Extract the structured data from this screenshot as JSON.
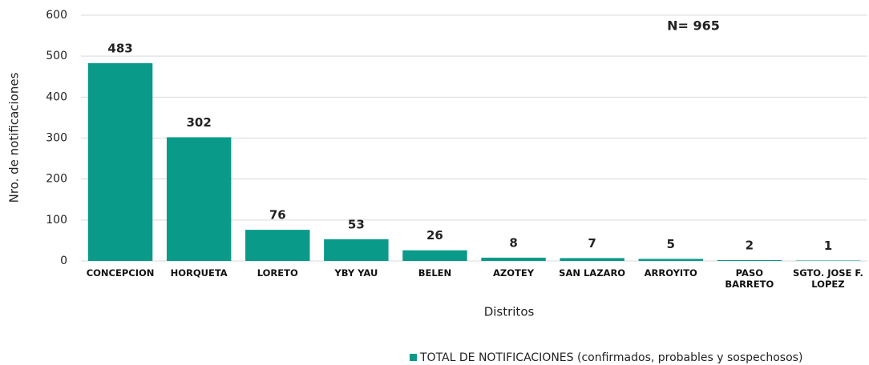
{
  "chart_data": {
    "type": "bar",
    "x_label": "Distritos",
    "y_label": "Nro. de notificaciones",
    "annotation": "N= 965",
    "categories": [
      "CONCEPCION",
      "HORQUETA",
      "LORETO",
      "YBY YAU",
      "BELEN",
      "AZOTEY",
      "SAN LAZARO",
      "ARROYITO",
      "PASO BARRETO",
      "SGTO. JOSE F. LOPEZ"
    ],
    "series": [
      {
        "name": "TOTAL DE NOTIFICACIONES (confirmados, probables y sospechosos)",
        "color": "#0a9a89",
        "values": [
          483,
          302,
          76,
          53,
          26,
          8,
          7,
          5,
          2,
          1
        ]
      }
    ],
    "ylim": [
      0,
      600
    ],
    "yticks": [
      0,
      100,
      200,
      300,
      400,
      500,
      600
    ],
    "grid": true,
    "legend": "bottom"
  }
}
